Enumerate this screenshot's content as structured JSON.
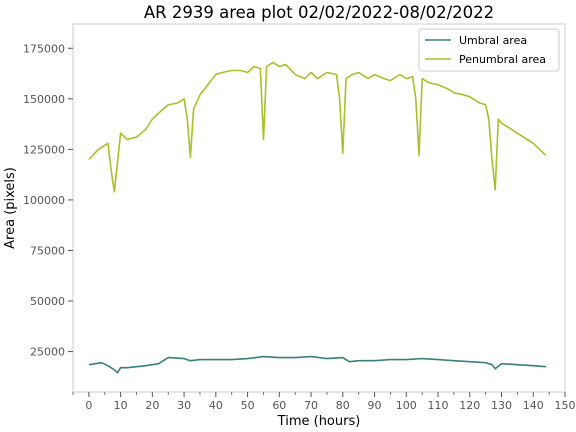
{
  "chart_data": {
    "type": "line",
    "title": "AR 2939 area plot 02/02/2022-08/02/2022",
    "xlabel": "Time (hours)",
    "ylabel": "Area (pixels)",
    "xlim": [
      -5,
      150
    ],
    "ylim": [
      5000,
      187000
    ],
    "xticks": [
      0,
      10,
      20,
      30,
      40,
      50,
      60,
      70,
      80,
      90,
      100,
      110,
      120,
      130,
      140,
      150
    ],
    "yticks": [
      25000,
      50000,
      75000,
      100000,
      125000,
      150000,
      175000
    ],
    "xtick_labels": [
      "0",
      "10",
      "20",
      "30",
      "40",
      "50",
      "60",
      "70",
      "80",
      "90",
      "100",
      "110",
      "120",
      "130",
      "140",
      "150"
    ],
    "ytick_labels": [
      "25000",
      "50000",
      "75000",
      "100000",
      "125000",
      "150000",
      "175000"
    ],
    "grid": false,
    "legend_position": "top-right",
    "series": [
      {
        "name": "Umbral area",
        "color": "#3a8080",
        "x": [
          0,
          2,
          4,
          6,
          8,
          9,
          10,
          12,
          15,
          18,
          20,
          22,
          25,
          30,
          32,
          35,
          40,
          45,
          50,
          55,
          60,
          65,
          70,
          75,
          80,
          82,
          85,
          90,
          95,
          100,
          105,
          110,
          115,
          120,
          125,
          127,
          128,
          130,
          135,
          140,
          144
        ],
        "y": [
          18500,
          19000,
          19500,
          18000,
          16000,
          14500,
          17000,
          17000,
          17500,
          18000,
          18500,
          19000,
          22000,
          21500,
          20500,
          21000,
          21000,
          21000,
          21500,
          22500,
          22000,
          22000,
          22500,
          21500,
          22000,
          20000,
          20500,
          20500,
          21000,
          21000,
          21500,
          21000,
          20500,
          20000,
          19500,
          18500,
          16500,
          19000,
          18500,
          18000,
          17500
        ]
      },
      {
        "name": "Penumbral area",
        "color": "#a8c02a",
        "x": [
          0,
          3,
          6,
          7,
          8,
          9,
          10,
          12,
          15,
          18,
          20,
          22,
          25,
          28,
          30,
          31,
          32,
          33,
          35,
          38,
          40,
          42,
          45,
          48,
          50,
          52,
          54,
          55,
          56,
          58,
          60,
          62,
          65,
          68,
          70,
          72,
          75,
          78,
          79,
          80,
          81,
          83,
          85,
          88,
          90,
          93,
          95,
          98,
          100,
          102,
          103,
          104,
          105,
          107,
          110,
          113,
          115,
          118,
          120,
          123,
          125,
          126,
          127,
          128,
          129,
          130,
          133,
          135,
          138,
          140,
          142,
          144
        ],
        "y": [
          120000,
          125000,
          128000,
          115000,
          104000,
          118000,
          133000,
          130000,
          131000,
          135000,
          140000,
          143000,
          147000,
          148000,
          150000,
          140000,
          121000,
          145000,
          152000,
          158000,
          162000,
          163000,
          164000,
          164000,
          163000,
          166000,
          165000,
          130000,
          166000,
          168000,
          166000,
          167000,
          162000,
          160000,
          163000,
          160000,
          163000,
          162000,
          150000,
          123000,
          160000,
          162000,
          163000,
          160000,
          162000,
          160000,
          159000,
          162000,
          160000,
          161000,
          150000,
          122000,
          160000,
          158000,
          157000,
          155000,
          153000,
          152000,
          151000,
          148000,
          147000,
          140000,
          120000,
          105000,
          140000,
          138000,
          135000,
          133000,
          130000,
          128000,
          125000,
          122000
        ]
      }
    ]
  }
}
